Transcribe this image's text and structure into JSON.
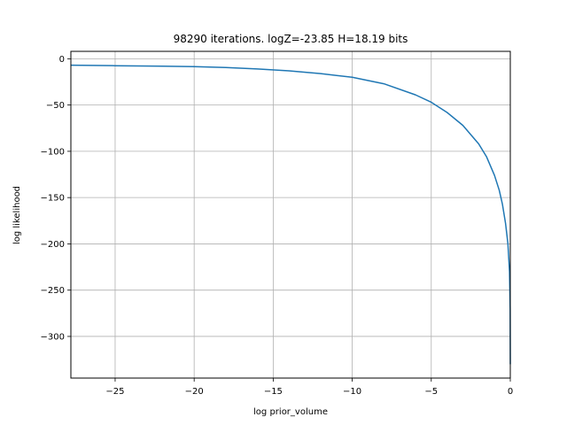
{
  "chart_data": {
    "type": "line",
    "title": "98290 iterations. logZ=-23.85 H=18.19 bits",
    "xlabel": "log prior_volume",
    "ylabel": "log likelihood",
    "xlim": [
      -27.8,
      0.0
    ],
    "ylim": [
      -345,
      8
    ],
    "grid": true,
    "xticks": [
      -25,
      -20,
      -15,
      -10,
      -5,
      0
    ],
    "xtick_labels": [
      "−25",
      "−20",
      "−15",
      "−10",
      "−5",
      "0"
    ],
    "yticks": [
      0,
      -50,
      -100,
      -150,
      -200,
      -250,
      -300
    ],
    "ytick_labels": [
      "0",
      "−50",
      "−100",
      "−150",
      "−200",
      "−250",
      "−300"
    ],
    "series": [
      {
        "color": "#1f77b4",
        "x": [
          -27.8,
          -25,
          -22,
          -20,
          -18,
          -16,
          -14,
          -12,
          -10,
          -8,
          -6,
          -5,
          -4,
          -3,
          -2,
          -1.5,
          -1,
          -0.7,
          -0.5,
          -0.3,
          -0.15,
          -0.05,
          -0.01,
          0
        ],
        "y": [
          -7,
          -7.5,
          -8,
          -8.5,
          -9.5,
          -11,
          -13,
          -16,
          -20,
          -27,
          -39,
          -47,
          -58,
          -72,
          -92,
          -106,
          -126,
          -142,
          -157,
          -178,
          -200,
          -230,
          -270,
          -330
        ]
      }
    ]
  }
}
